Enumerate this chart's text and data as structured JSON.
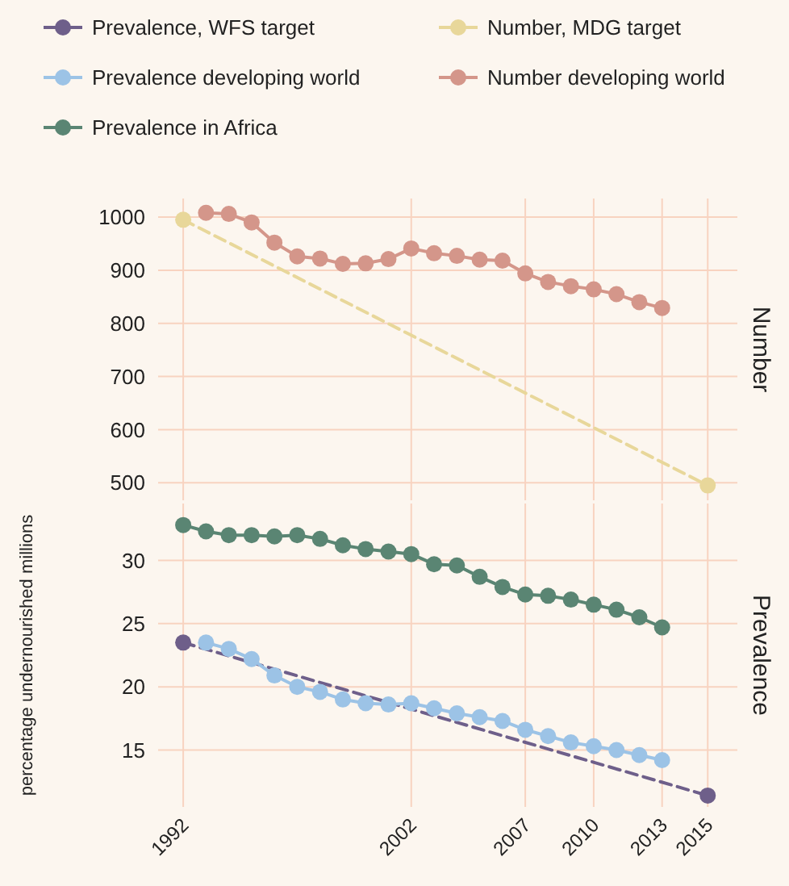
{
  "chart_data": [
    {
      "type": "line",
      "title": "Number",
      "legend": "top",
      "grid": true,
      "marker": "circle",
      "tick_labels": "y",
      "xlim": [
        1990.9,
        2016.3
      ],
      "xticks": [
        1992,
        2002,
        2007,
        2010,
        2013,
        2015
      ],
      "ylim": [
        467,
        1035
      ],
      "yticks": [
        500,
        600,
        700,
        800,
        900,
        1000
      ],
      "series": [
        {
          "name": "Number, MDG target",
          "color": "#e8d79a",
          "line_style": "dashed",
          "x": [
            1992,
            2015
          ],
          "values": [
            995,
            495
          ]
        },
        {
          "name": "Number developing world",
          "color": "#d4968a",
          "line_style": "solid",
          "x": [
            1993,
            1994,
            1995,
            1996,
            1997,
            1998,
            1999,
            2000,
            2001,
            2002,
            2003,
            2004,
            2005,
            2006,
            2007,
            2008,
            2009,
            2010,
            2011,
            2012,
            2013
          ],
          "values": [
            1008,
            1006,
            990,
            952,
            926,
            922,
            912,
            913,
            921,
            941,
            932,
            927,
            920,
            918,
            894,
            878,
            870,
            864,
            855,
            840,
            829
          ]
        }
      ]
    },
    {
      "type": "line",
      "title": "Prevalence",
      "ylabel": "percentage undernourished millions",
      "legend": "top",
      "grid": true,
      "marker": "circle",
      "xlim": [
        1990.9,
        2016.3
      ],
      "xticks": [
        1992,
        2002,
        2007,
        2010,
        2013,
        2015
      ],
      "ylim": [
        10.5,
        34.5
      ],
      "yticks": [
        15,
        20,
        25,
        30
      ],
      "series": [
        {
          "name": "Prevalence, WFS target",
          "color": "#6e5f8a",
          "line_style": "dashed",
          "x": [
            1992,
            2015
          ],
          "values": [
            23.5,
            11.4
          ]
        },
        {
          "name": "Prevalence developing world",
          "color": "#9cc3e6",
          "line_style": "solid",
          "x": [
            1993,
            1994,
            1995,
            1996,
            1997,
            1998,
            1999,
            2000,
            2001,
            2002,
            2003,
            2004,
            2005,
            2006,
            2007,
            2008,
            2009,
            2010,
            2011,
            2012,
            2013
          ],
          "values": [
            23.5,
            23.0,
            22.2,
            20.9,
            20.0,
            19.6,
            19.0,
            18.7,
            18.6,
            18.7,
            18.3,
            17.9,
            17.6,
            17.3,
            16.6,
            16.1,
            15.6,
            15.3,
            15.0,
            14.6,
            14.2
          ]
        },
        {
          "name": "Prevalence in Africa",
          "color": "#5a8573",
          "line_style": "solid",
          "x": [
            1992,
            1993,
            1994,
            1995,
            1996,
            1997,
            1998,
            1999,
            2000,
            2001,
            2002,
            2003,
            2004,
            2005,
            2006,
            2007,
            2008,
            2009,
            2010,
            2011,
            2012,
            2013
          ],
          "values": [
            32.8,
            32.3,
            32.0,
            32.0,
            31.9,
            32.0,
            31.7,
            31.2,
            30.9,
            30.7,
            30.5,
            29.7,
            29.6,
            28.7,
            27.9,
            27.3,
            27.2,
            26.9,
            26.5,
            26.1,
            25.5,
            24.7
          ]
        }
      ]
    }
  ]
}
